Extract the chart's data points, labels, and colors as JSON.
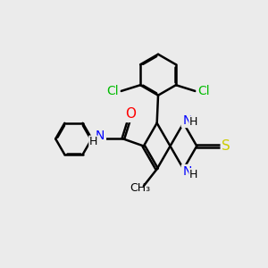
{
  "background_color": "#ebebeb",
  "atom_colors": {
    "C": "#000000",
    "N": "#0000ff",
    "O": "#ff0000",
    "S": "#cccc00",
    "Cl": "#00bb00",
    "H": "#000000"
  },
  "bond_color": "#000000",
  "bond_width": 1.8,
  "font_size": 10,
  "figsize": [
    3.0,
    3.0
  ],
  "dpi": 100
}
